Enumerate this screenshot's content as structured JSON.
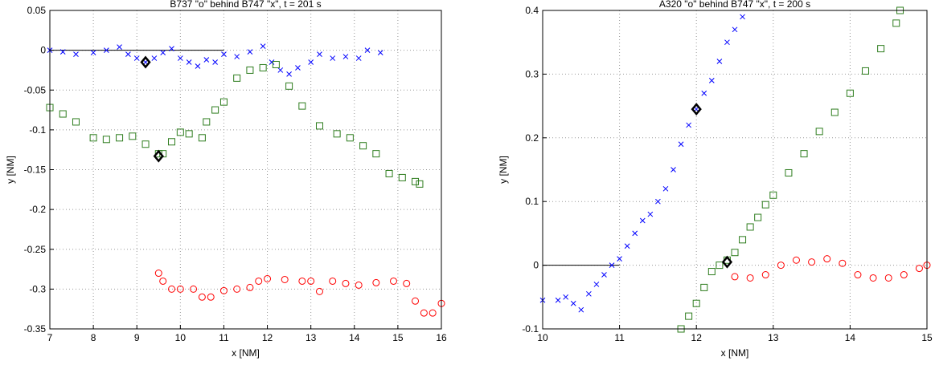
{
  "chart_data": [
    {
      "type": "line",
      "title": "B737 \"o\" behind B747 \"x\", t = 201 s",
      "xlabel": "x [NM]",
      "ylabel": "y [NM]",
      "xlim": [
        7,
        16
      ],
      "ylim": [
        -0.35,
        0.05
      ],
      "xticks": [
        7,
        8,
        9,
        10,
        11,
        12,
        13,
        14,
        15,
        16
      ],
      "yticks": [
        -0.35,
        -0.3,
        -0.25,
        -0.2,
        -0.15,
        -0.1,
        -0.05,
        0,
        0.05
      ],
      "grid": true,
      "series": [
        {
          "color": "#000000",
          "marker": "none",
          "linestyle": "solid",
          "x": [
            7,
            11
          ],
          "values": [
            0,
            0
          ]
        },
        {
          "color": "#0000ff",
          "marker": "x",
          "linestyle": "none",
          "x": [
            7,
            7.3,
            7.6,
            8,
            8.3,
            8.6,
            8.8,
            9,
            9.2,
            9.4,
            9.6,
            9.8,
            10,
            10.2,
            10.4,
            10.6,
            10.8,
            11,
            11.3,
            11.6,
            11.9,
            12.1,
            12.3,
            12.5,
            12.7,
            13,
            13.2,
            13.5,
            13.8,
            14.1,
            14.3,
            14.6
          ],
          "values": [
            0,
            -0.002,
            -0.005,
            -0.003,
            0,
            0.004,
            -0.005,
            -0.01,
            -0.015,
            -0.01,
            -0.003,
            0.002,
            -0.01,
            -0.015,
            -0.02,
            -0.012,
            -0.015,
            -0.005,
            -0.008,
            -0.002,
            0.005,
            -0.015,
            -0.025,
            -0.03,
            -0.022,
            -0.015,
            -0.005,
            -0.01,
            -0.008,
            -0.01,
            0,
            -0.003
          ]
        },
        {
          "color": "#2e7d1e",
          "marker": "square",
          "linestyle": "none",
          "x": [
            7,
            7.3,
            7.6,
            8,
            8.3,
            8.6,
            8.9,
            9.2,
            9.5,
            9.6,
            9.8,
            10,
            10.2,
            10.5,
            10.6,
            10.8,
            11,
            11.3,
            11.6,
            11.9,
            12.2,
            12.5,
            12.8,
            13.2,
            13.6,
            13.9,
            14.2,
            14.5,
            14.8,
            15.1,
            15.4,
            15.5
          ],
          "values": [
            -0.072,
            -0.08,
            -0.09,
            -0.11,
            -0.112,
            -0.11,
            -0.108,
            -0.118,
            -0.13,
            -0.13,
            -0.115,
            -0.103,
            -0.105,
            -0.11,
            -0.09,
            -0.075,
            -0.065,
            -0.035,
            -0.025,
            -0.022,
            -0.018,
            -0.045,
            -0.07,
            -0.095,
            -0.105,
            -0.11,
            -0.12,
            -0.13,
            -0.155,
            -0.16,
            -0.165,
            -0.168
          ]
        },
        {
          "color": "#ff0000",
          "marker": "circle",
          "linestyle": "none",
          "x": [
            9.5,
            9.6,
            9.8,
            10,
            10.3,
            10.5,
            10.7,
            11,
            11.3,
            11.6,
            11.8,
            12,
            12.4,
            12.8,
            13,
            13.2,
            13.5,
            13.8,
            14.1,
            14.5,
            14.9,
            15.2,
            15.4,
            15.6,
            15.8,
            16
          ],
          "values": [
            -0.28,
            -0.29,
            -0.3,
            -0.3,
            -0.3,
            -0.31,
            -0.31,
            -0.302,
            -0.3,
            -0.298,
            -0.29,
            -0.287,
            -0.288,
            -0.29,
            -0.29,
            -0.303,
            -0.29,
            -0.293,
            -0.295,
            -0.292,
            -0.29,
            -0.293,
            -0.315,
            -0.33,
            -0.33,
            -0.318
          ]
        },
        {
          "color": "#000000",
          "marker": "diamond",
          "linestyle": "none",
          "x": [
            9.2,
            9.5
          ],
          "values": [
            -0.015,
            -0.133
          ]
        }
      ]
    },
    {
      "type": "line",
      "title": "A320 \"o\" behind B747 \"x\", t = 200 s",
      "xlabel": "x [NM]",
      "ylabel": "y [NM]",
      "xlim": [
        10,
        15
      ],
      "ylim": [
        -0.1,
        0.4
      ],
      "xticks": [
        10,
        11,
        12,
        13,
        14,
        15
      ],
      "yticks": [
        -0.1,
        0,
        0.1,
        0.2,
        0.3,
        0.4
      ],
      "grid": true,
      "series": [
        {
          "color": "#000000",
          "marker": "none",
          "linestyle": "solid",
          "x": [
            10,
            11
          ],
          "values": [
            0,
            0
          ]
        },
        {
          "color": "#0000ff",
          "marker": "x",
          "linestyle": "none",
          "x": [
            10,
            10.2,
            10.3,
            10.4,
            10.5,
            10.6,
            10.7,
            10.8,
            10.9,
            11,
            11.1,
            11.2,
            11.3,
            11.4,
            11.5,
            11.6,
            11.7,
            11.8,
            11.9,
            12,
            12.1,
            12.2,
            12.3,
            12.4,
            12.5,
            12.6
          ],
          "values": [
            -0.055,
            -0.055,
            -0.05,
            -0.06,
            -0.07,
            -0.045,
            -0.03,
            -0.015,
            0,
            0.01,
            0.03,
            0.05,
            0.07,
            0.08,
            0.1,
            0.12,
            0.15,
            0.19,
            0.22,
            0.245,
            0.27,
            0.29,
            0.32,
            0.35,
            0.37,
            0.39
          ]
        },
        {
          "color": "#2e7d1e",
          "marker": "square",
          "linestyle": "none",
          "x": [
            11.8,
            11.9,
            12,
            12.1,
            12.2,
            12.3,
            12.4,
            12.5,
            12.6,
            12.7,
            12.8,
            12.9,
            13,
            13.2,
            13.4,
            13.6,
            13.8,
            14,
            14.2,
            14.4,
            14.6,
            14.65
          ],
          "values": [
            -0.1,
            -0.08,
            -0.06,
            -0.035,
            -0.01,
            0,
            0.008,
            0.02,
            0.04,
            0.06,
            0.075,
            0.095,
            0.11,
            0.145,
            0.175,
            0.21,
            0.24,
            0.27,
            0.305,
            0.34,
            0.38,
            0.4
          ]
        },
        {
          "color": "#ff0000",
          "marker": "circle",
          "linestyle": "none",
          "x": [
            12.5,
            12.7,
            12.9,
            13.1,
            13.3,
            13.5,
            13.7,
            13.9,
            14.1,
            14.3,
            14.5,
            14.7,
            14.9,
            15
          ],
          "values": [
            -0.018,
            -0.02,
            -0.015,
            0,
            0.008,
            0.005,
            0.01,
            0.003,
            -0.015,
            -0.02,
            -0.02,
            -0.015,
            -0.005,
            0
          ]
        },
        {
          "color": "#000000",
          "marker": "diamond",
          "linestyle": "none",
          "x": [
            12,
            12.4
          ],
          "values": [
            0.245,
            0.005
          ]
        }
      ]
    }
  ]
}
